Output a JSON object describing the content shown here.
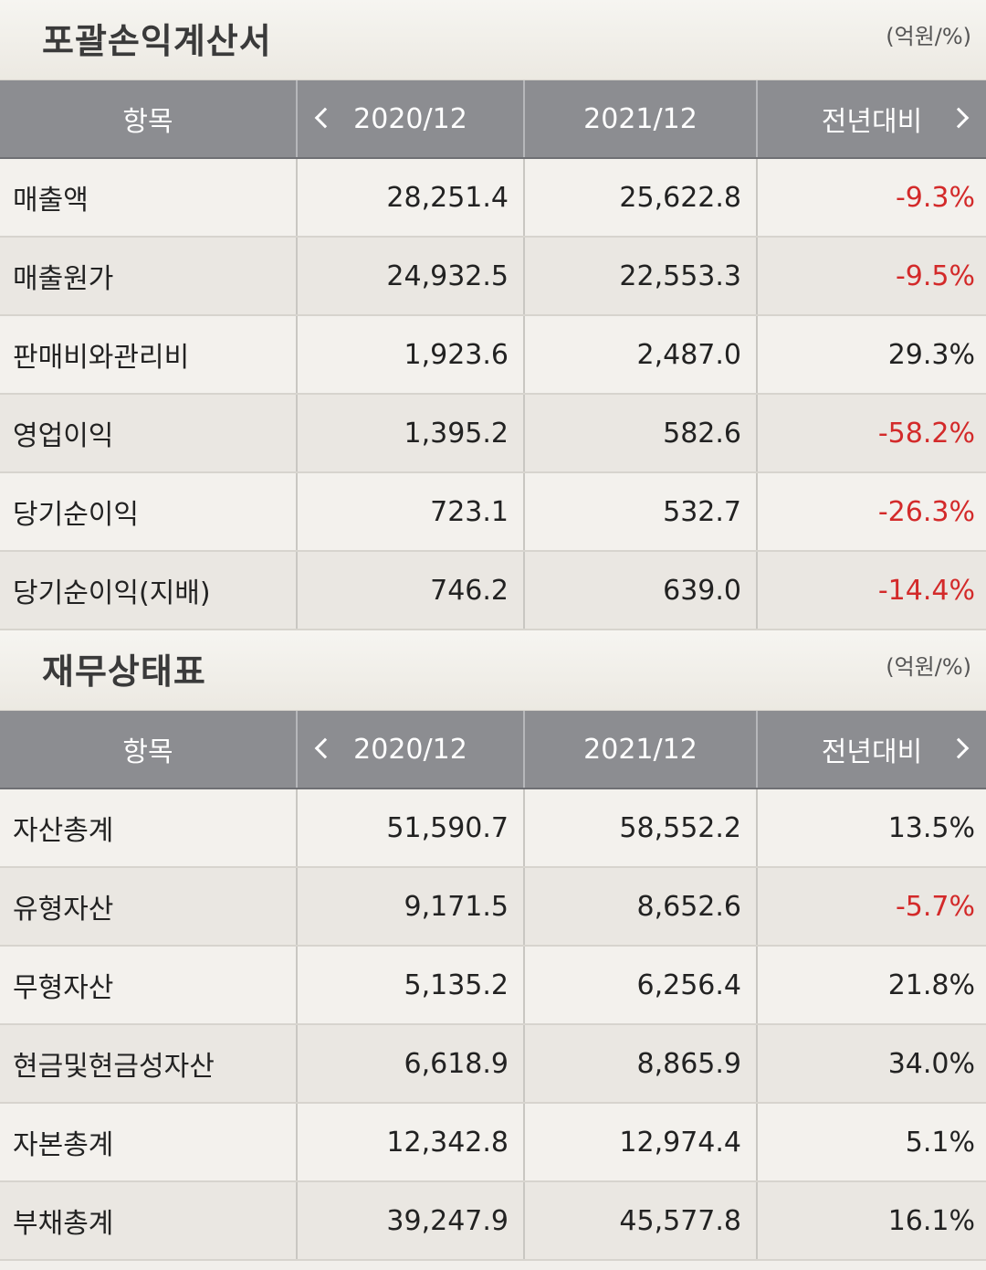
{
  "sections": [
    {
      "title": "포괄손익계산서",
      "unit": "(억원/%)",
      "headers": [
        "항목",
        "2020/12",
        "2021/12",
        "전년대비"
      ],
      "rows": [
        {
          "label": "매출액",
          "y2020": "28,251.4",
          "y2021": "25,622.8",
          "change": "-9.3%"
        },
        {
          "label": "매출원가",
          "y2020": "24,932.5",
          "y2021": "22,553.3",
          "change": "-9.5%"
        },
        {
          "label": "판매비와관리비",
          "y2020": "1,923.6",
          "y2021": "2,487.0",
          "change": "29.3%"
        },
        {
          "label": "영업이익",
          "y2020": "1,395.2",
          "y2021": "582.6",
          "change": "-58.2%"
        },
        {
          "label": "당기순이익",
          "y2020": "723.1",
          "y2021": "532.7",
          "change": "-26.3%"
        },
        {
          "label": "당기순이익(지배)",
          "y2020": "746.2",
          "y2021": "639.0",
          "change": "-14.4%"
        }
      ]
    },
    {
      "title": "재무상태표",
      "unit": "(억원/%)",
      "headers": [
        "항목",
        "2020/12",
        "2021/12",
        "전년대비"
      ],
      "rows": [
        {
          "label": "자산총계",
          "y2020": "51,590.7",
          "y2021": "58,552.2",
          "change": "13.5%"
        },
        {
          "label": "유형자산",
          "y2020": "9,171.5",
          "y2021": "8,652.6",
          "change": "-5.7%"
        },
        {
          "label": "무형자산",
          "y2020": "5,135.2",
          "y2021": "6,256.4",
          "change": "21.8%"
        },
        {
          "label": "현금및현금성자산",
          "y2020": "6,618.9",
          "y2021": "8,865.9",
          "change": "34.0%"
        },
        {
          "label": "자본총계",
          "y2020": "12,342.8",
          "y2021": "12,974.4",
          "change": "5.1%"
        },
        {
          "label": "부채총계",
          "y2020": "39,247.9",
          "y2021": "45,577.8",
          "change": "16.1%"
        }
      ]
    }
  ],
  "colors": {
    "negative": "#d32a2a",
    "header_bg": "#8c8d91"
  },
  "icons": {
    "prev": "chevron-left-icon",
    "next": "chevron-right-icon"
  }
}
